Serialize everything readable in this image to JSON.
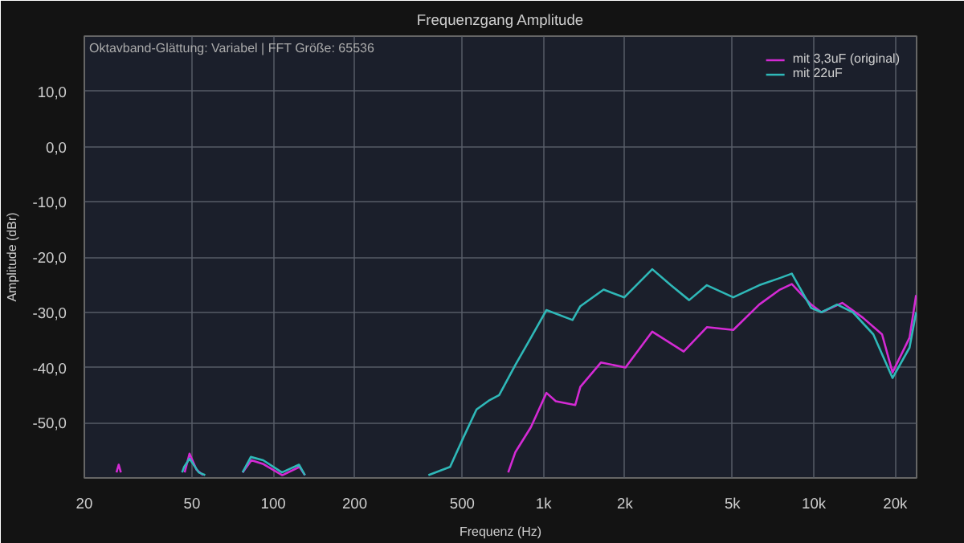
{
  "chart_data": {
    "type": "line",
    "title": "Frequenzgang Amplitude",
    "xlabel": "Frequenz (Hz)",
    "ylabel": "Amplitude (dBr)",
    "annotations": [
      "Oktavband-Glättung: Variabel | FFT Größe: 65536"
    ],
    "log": "x",
    "grid": true,
    "legend": "top right",
    "xlim": [
      20,
      24000
    ],
    "ylim": [
      -60,
      20
    ],
    "xticks": [
      20,
      50,
      100,
      200,
      500,
      {
        "value": 1000,
        "label": "1k"
      },
      {
        "value": 2000,
        "label": "2k"
      },
      {
        "value": 5000,
        "label": "5k"
      },
      {
        "value": 10000,
        "label": "10k"
      },
      {
        "value": 20000,
        "label": "20k"
      }
    ],
    "yticks": [
      {
        "value": -50,
        "label": "-50,0"
      },
      {
        "value": -40,
        "label": "-40,0"
      },
      {
        "value": -30,
        "label": "-30,0"
      },
      {
        "value": -20,
        "label": "-20,0"
      },
      {
        "value": -10,
        "label": "-10,0"
      },
      {
        "value": 0,
        "label": "0,0"
      },
      {
        "value": 10,
        "label": "10,0"
      }
    ],
    "series": [
      {
        "name": "mit 3,3uF (original)",
        "color": "#d42ad4",
        "x": [
          26.3,
          26.8,
          27.3,
          null,
          47,
          49,
          52,
          55,
          null,
          77,
          83,
          92,
          108,
          125,
          131,
          null,
          740,
          787,
          898,
          1025,
          1110,
          1310,
          1368,
          1630,
          2010,
          2525,
          3300,
          4020,
          5035,
          6280,
          7490,
          8290,
          9770,
          10670,
          12740,
          15200,
          17880,
          19550,
          22600,
          23900
        ],
        "values": [
          -59,
          -57.6,
          -59,
          null,
          -59,
          -55.6,
          -58.5,
          -59.5,
          null,
          -59,
          -56.8,
          -57.5,
          -59.5,
          -58,
          -59.5,
          null,
          -59,
          -55.3,
          -50.8,
          -44.6,
          -46.1,
          -46.8,
          -43.5,
          -39.1,
          -40,
          -33.5,
          -37.1,
          -32.7,
          -33.2,
          -28.6,
          -25.9,
          -24.9,
          -28.6,
          -30,
          -28.3,
          -31,
          -34,
          -40.9,
          -34.6,
          -26.9
        ]
      },
      {
        "name": "mit 22uF",
        "color": "#2fb8b8",
        "x": [
          46,
          46.8,
          49,
          53,
          56,
          null,
          77,
          82.6,
          91.8,
          107.7,
          124.5,
          131,
          null,
          375,
          451,
          506,
          565,
          632,
          685,
          787,
          898,
          1025,
          1280,
          1368,
          1668,
          1990,
          2525,
          2958,
          3457,
          4020,
          5035,
          6280,
          7490,
          8290,
          9770,
          10670,
          12190,
          13950,
          16600,
          19550,
          22600,
          23900
        ],
        "values": [
          -59,
          -58,
          -56.5,
          -59,
          -59.5,
          null,
          -59,
          -56.2,
          -56.8,
          -59,
          -57.6,
          -59.5,
          null,
          -59.5,
          -58,
          -52.6,
          -47.6,
          -45.9,
          -45,
          -39.5,
          -34.6,
          -29.6,
          -31.4,
          -28.9,
          -25.9,
          -27.3,
          -22.2,
          -25.1,
          -27.8,
          -25.1,
          -27.3,
          -25.1,
          -23.8,
          -23,
          -29.2,
          -30,
          -28.6,
          -30,
          -34,
          -41.9,
          -36.4,
          -30
        ]
      }
    ]
  }
}
